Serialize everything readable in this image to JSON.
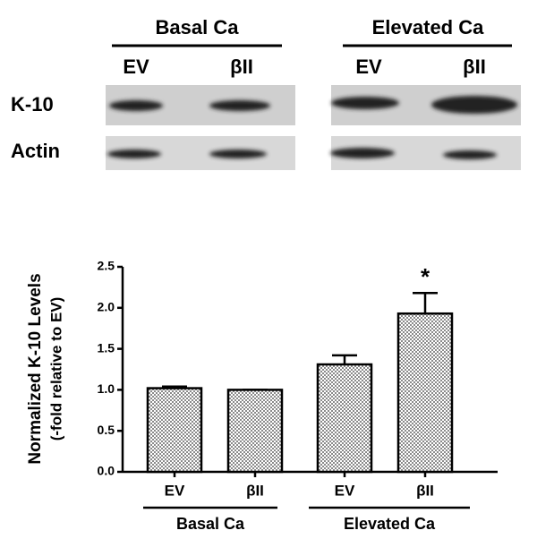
{
  "blot": {
    "groups": [
      "Basal Ca",
      "Elevated Ca"
    ],
    "lanes": [
      "EV",
      "βII",
      "EV",
      "βII"
    ],
    "rows": [
      "K-10",
      "Actin"
    ]
  },
  "chart_data": {
    "type": "bar",
    "ylabel": [
      "Normalized K-10 Levels",
      "(-fold relative to EV)"
    ],
    "categories": [
      "EV",
      "βII",
      "EV",
      "βII"
    ],
    "groups": [
      "Basal Ca",
      "Elevated Ca"
    ],
    "values": [
      1.02,
      1.0,
      1.31,
      1.93
    ],
    "errors": [
      0.02,
      0,
      0.11,
      0.25
    ],
    "value_annotations": [
      null,
      null,
      null,
      "*"
    ],
    "color": "#8a8a8a",
    "ylim": [
      0,
      2.5
    ],
    "yticks": [
      {
        "value": 0,
        "label": "0.0"
      },
      {
        "value": 0.5,
        "label": "0.5"
      },
      {
        "value": 1,
        "label": "1.0"
      },
      {
        "value": 1.5,
        "label": "1.5"
      },
      {
        "value": 2,
        "label": "2.0"
      },
      {
        "value": 2.5,
        "label": "2.5"
      }
    ]
  }
}
